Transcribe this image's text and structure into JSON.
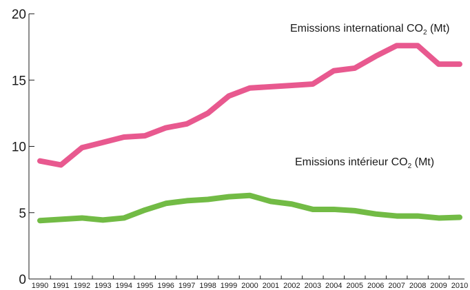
{
  "chart_data": {
    "type": "line",
    "x": [
      1990,
      1991,
      1992,
      1993,
      1994,
      1995,
      1996,
      1997,
      1998,
      1999,
      2000,
      2001,
      2002,
      2003,
      2004,
      2005,
      2006,
      2007,
      2008,
      2009,
      2010
    ],
    "x_tick_labels": [
      "1990",
      "1991",
      "1992",
      "1993",
      "1994",
      "1995",
      "1996",
      "1997",
      "1998",
      "1999",
      "2000",
      "2001",
      "2002",
      "2003",
      "2004",
      "2005",
      "2006",
      "2007",
      "2008",
      "2009",
      "2010"
    ],
    "ylim": [
      0,
      20
    ],
    "y_ticks": [
      0,
      5,
      10,
      15,
      20
    ],
    "grid": false,
    "series": [
      {
        "name": "Emissions international CO2 (Mt)",
        "label_parts": {
          "before": "Emissions international CO",
          "sub": "2",
          "after": " (Mt)"
        },
        "color": "#e8598f",
        "values": [
          8.9,
          8.6,
          9.9,
          10.3,
          10.7,
          10.8,
          11.4,
          11.7,
          12.5,
          13.8,
          14.4,
          14.5,
          14.6,
          14.7,
          15.7,
          15.9,
          16.8,
          17.6,
          17.6,
          16.2,
          16.2
        ]
      },
      {
        "name": "Emissions intérieur CO2 (Mt)",
        "label_parts": {
          "before": "Emissions intérieur CO",
          "sub": "2",
          "after": " (Mt)"
        },
        "color": "#72bb45",
        "values": [
          4.4,
          4.5,
          4.6,
          4.45,
          4.6,
          5.2,
          5.7,
          5.9,
          6.0,
          6.2,
          6.3,
          5.85,
          5.65,
          5.25,
          5.25,
          5.15,
          4.9,
          4.75,
          4.75,
          4.6,
          4.65
        ]
      }
    ]
  }
}
